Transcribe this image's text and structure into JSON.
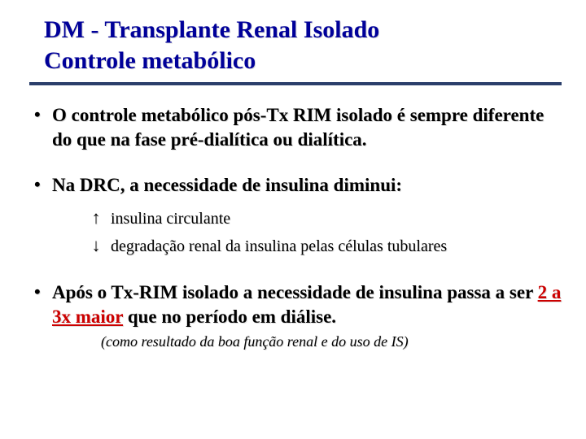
{
  "title": {
    "line1": "DM - Transplante Renal Isolado",
    "line2": "Controle metabólico",
    "color": "#000099",
    "fontsize": 30
  },
  "hr_color": "#2b3f6b",
  "bullets": [
    {
      "text": "O controle metabólico pós-Tx RIM isolado é sempre diferente do que na fase pré-dialítica ou dialítica."
    },
    {
      "text": "Na DRC, a necessidade de insulina diminui:",
      "sub": [
        {
          "arrow": "↑",
          "text": "insulina circulante"
        },
        {
          "arrow": "↓",
          "text": "degradação renal da insulina pelas células tubulares"
        }
      ]
    },
    {
      "pre": "Após o Tx-RIM isolado a necessidade de insulina passa a ser ",
      "emph": "2 a 3x maior",
      "post": " que no período em diálise.",
      "note": "(como resultado da boa função renal e do uso de IS)"
    }
  ],
  "emph_color": "#cc0000",
  "background_color": "#ffffff",
  "body_fontsize": 23,
  "sub_fontsize": 20,
  "note_fontsize": 18
}
